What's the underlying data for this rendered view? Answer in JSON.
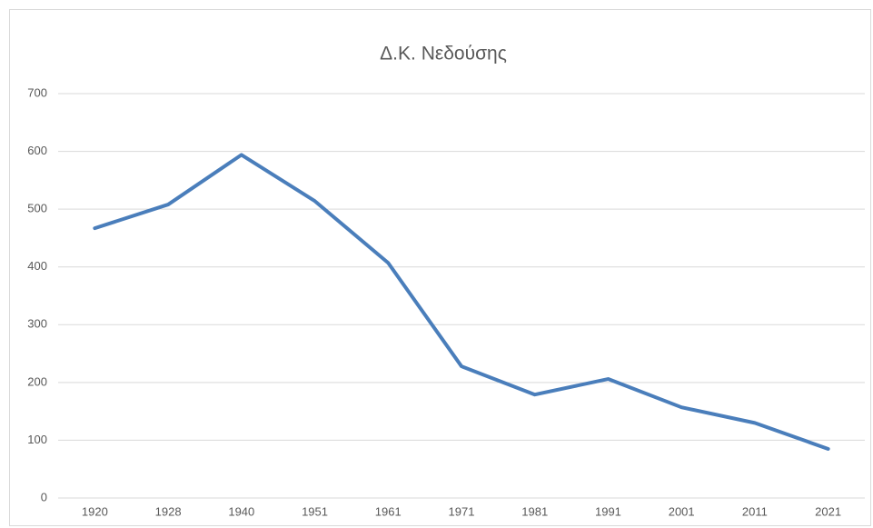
{
  "chart_data": {
    "type": "line",
    "title": "Δ.Κ. Νεδούσης",
    "categories": [
      "1920",
      "1928",
      "1940",
      "1951",
      "1961",
      "1971",
      "1981",
      "1991",
      "2001",
      "2011",
      "2021"
    ],
    "values": [
      467,
      508,
      594,
      514,
      407,
      228,
      179,
      206,
      157,
      130,
      85
    ],
    "color": "#4a7ebb",
    "ylim": [
      0,
      700
    ],
    "yticks": [
      0,
      100,
      200,
      300,
      400,
      500,
      600,
      700
    ],
    "grid": true
  }
}
